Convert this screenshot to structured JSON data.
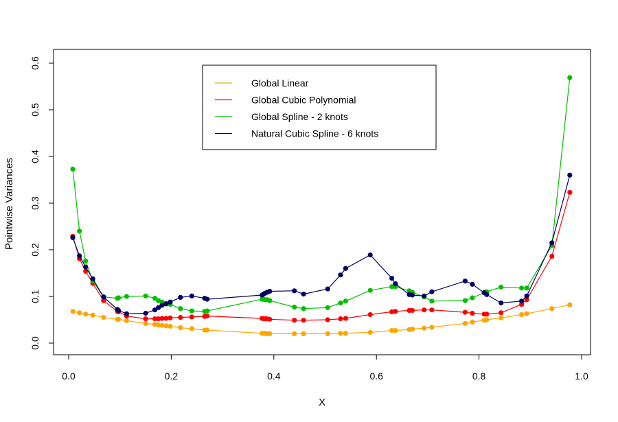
{
  "chart_data": {
    "type": "line",
    "xlabel": "X",
    "ylabel": "Pointwise Variances",
    "xlim": [
      0.0,
      1.0
    ],
    "ylim": [
      0.0,
      0.6
    ],
    "x_ticks": [
      "0.0",
      "0.2",
      "0.4",
      "0.6",
      "0.8",
      "1.0"
    ],
    "y_ticks": [
      "0.0",
      "0.1",
      "0.2",
      "0.3",
      "0.4",
      "0.5",
      "0.6"
    ],
    "legend_position": "top-center",
    "grid": false,
    "series": [
      {
        "name": "Global Linear",
        "color": "#FFA500",
        "points": [
          [
            0.008,
            0.068
          ],
          [
            0.021,
            0.065
          ],
          [
            0.033,
            0.062
          ],
          [
            0.047,
            0.06
          ],
          [
            0.068,
            0.055
          ],
          [
            0.095,
            0.051
          ],
          [
            0.097,
            0.051
          ],
          [
            0.113,
            0.048
          ],
          [
            0.15,
            0.042
          ],
          [
            0.168,
            0.04
          ],
          [
            0.175,
            0.039
          ],
          [
            0.182,
            0.038
          ],
          [
            0.19,
            0.037
          ],
          [
            0.198,
            0.036
          ],
          [
            0.218,
            0.033
          ],
          [
            0.24,
            0.031
          ],
          [
            0.265,
            0.028
          ],
          [
            0.27,
            0.028
          ],
          [
            0.377,
            0.021
          ],
          [
            0.38,
            0.021
          ],
          [
            0.383,
            0.021
          ],
          [
            0.387,
            0.02
          ],
          [
            0.392,
            0.02
          ],
          [
            0.44,
            0.02
          ],
          [
            0.458,
            0.02
          ],
          [
            0.505,
            0.02
          ],
          [
            0.53,
            0.021
          ],
          [
            0.54,
            0.021
          ],
          [
            0.588,
            0.023
          ],
          [
            0.63,
            0.027
          ],
          [
            0.637,
            0.027
          ],
          [
            0.664,
            0.029
          ],
          [
            0.67,
            0.03
          ],
          [
            0.693,
            0.032
          ],
          [
            0.708,
            0.034
          ],
          [
            0.773,
            0.042
          ],
          [
            0.787,
            0.045
          ],
          [
            0.81,
            0.049
          ],
          [
            0.815,
            0.05
          ],
          [
            0.843,
            0.054
          ],
          [
            0.883,
            0.061
          ],
          [
            0.893,
            0.063
          ],
          [
            0.942,
            0.074
          ],
          [
            0.977,
            0.082
          ]
        ]
      },
      {
        "name": "Global Cubic Polynomial",
        "color": "#FF0000",
        "points": [
          [
            0.008,
            0.229
          ],
          [
            0.021,
            0.181
          ],
          [
            0.033,
            0.154
          ],
          [
            0.047,
            0.128
          ],
          [
            0.068,
            0.091
          ],
          [
            0.095,
            0.068
          ],
          [
            0.097,
            0.067
          ],
          [
            0.113,
            0.058
          ],
          [
            0.15,
            0.052
          ],
          [
            0.168,
            0.052
          ],
          [
            0.175,
            0.052
          ],
          [
            0.182,
            0.053
          ],
          [
            0.19,
            0.053
          ],
          [
            0.198,
            0.054
          ],
          [
            0.218,
            0.055
          ],
          [
            0.24,
            0.056
          ],
          [
            0.265,
            0.057
          ],
          [
            0.27,
            0.058
          ],
          [
            0.377,
            0.053
          ],
          [
            0.38,
            0.052
          ],
          [
            0.383,
            0.052
          ],
          [
            0.387,
            0.052
          ],
          [
            0.392,
            0.051
          ],
          [
            0.44,
            0.049
          ],
          [
            0.458,
            0.049
          ],
          [
            0.505,
            0.05
          ],
          [
            0.53,
            0.052
          ],
          [
            0.54,
            0.053
          ],
          [
            0.588,
            0.061
          ],
          [
            0.63,
            0.067
          ],
          [
            0.637,
            0.068
          ],
          [
            0.664,
            0.07
          ],
          [
            0.67,
            0.07
          ],
          [
            0.693,
            0.071
          ],
          [
            0.708,
            0.071
          ],
          [
            0.773,
            0.066
          ],
          [
            0.787,
            0.064
          ],
          [
            0.81,
            0.062
          ],
          [
            0.815,
            0.062
          ],
          [
            0.843,
            0.065
          ],
          [
            0.883,
            0.083
          ],
          [
            0.893,
            0.093
          ],
          [
            0.942,
            0.186
          ],
          [
            0.977,
            0.323
          ]
        ]
      },
      {
        "name": "Global Spline - 2 knots",
        "color": "#00C000",
        "points": [
          [
            0.008,
            0.373
          ],
          [
            0.021,
            0.24
          ],
          [
            0.033,
            0.176
          ],
          [
            0.047,
            0.133
          ],
          [
            0.068,
            0.099
          ],
          [
            0.095,
            0.096
          ],
          [
            0.097,
            0.097
          ],
          [
            0.113,
            0.1
          ],
          [
            0.15,
            0.101
          ],
          [
            0.168,
            0.096
          ],
          [
            0.175,
            0.091
          ],
          [
            0.182,
            0.088
          ],
          [
            0.19,
            0.085
          ],
          [
            0.198,
            0.083
          ],
          [
            0.218,
            0.074
          ],
          [
            0.24,
            0.069
          ],
          [
            0.265,
            0.068
          ],
          [
            0.27,
            0.069
          ],
          [
            0.377,
            0.094
          ],
          [
            0.38,
            0.094
          ],
          [
            0.383,
            0.093
          ],
          [
            0.387,
            0.093
          ],
          [
            0.392,
            0.091
          ],
          [
            0.44,
            0.077
          ],
          [
            0.458,
            0.074
          ],
          [
            0.505,
            0.076
          ],
          [
            0.53,
            0.086
          ],
          [
            0.54,
            0.09
          ],
          [
            0.588,
            0.113
          ],
          [
            0.63,
            0.121
          ],
          [
            0.637,
            0.121
          ],
          [
            0.664,
            0.112
          ],
          [
            0.67,
            0.109
          ],
          [
            0.693,
            0.099
          ],
          [
            0.708,
            0.09
          ],
          [
            0.773,
            0.091
          ],
          [
            0.787,
            0.097
          ],
          [
            0.81,
            0.108
          ],
          [
            0.815,
            0.11
          ],
          [
            0.843,
            0.12
          ],
          [
            0.883,
            0.118
          ],
          [
            0.893,
            0.118
          ],
          [
            0.942,
            0.209
          ],
          [
            0.977,
            0.569
          ]
        ]
      },
      {
        "name": "Natural Cubic Spline - 6 knots",
        "color": "#000066",
        "points": [
          [
            0.008,
            0.226
          ],
          [
            0.021,
            0.187
          ],
          [
            0.033,
            0.163
          ],
          [
            0.047,
            0.138
          ],
          [
            0.068,
            0.099
          ],
          [
            0.095,
            0.072
          ],
          [
            0.097,
            0.07
          ],
          [
            0.113,
            0.063
          ],
          [
            0.15,
            0.064
          ],
          [
            0.168,
            0.071
          ],
          [
            0.175,
            0.076
          ],
          [
            0.182,
            0.081
          ],
          [
            0.19,
            0.084
          ],
          [
            0.198,
            0.088
          ],
          [
            0.218,
            0.098
          ],
          [
            0.24,
            0.101
          ],
          [
            0.265,
            0.096
          ],
          [
            0.27,
            0.094
          ],
          [
            0.377,
            0.103
          ],
          [
            0.38,
            0.105
          ],
          [
            0.383,
            0.107
          ],
          [
            0.387,
            0.109
          ],
          [
            0.392,
            0.111
          ],
          [
            0.44,
            0.112
          ],
          [
            0.458,
            0.105
          ],
          [
            0.505,
            0.116
          ],
          [
            0.53,
            0.146
          ],
          [
            0.54,
            0.16
          ],
          [
            0.588,
            0.189
          ],
          [
            0.63,
            0.139
          ],
          [
            0.637,
            0.127
          ],
          [
            0.664,
            0.104
          ],
          [
            0.67,
            0.103
          ],
          [
            0.693,
            0.101
          ],
          [
            0.708,
            0.11
          ],
          [
            0.773,
            0.133
          ],
          [
            0.787,
            0.126
          ],
          [
            0.81,
            0.108
          ],
          [
            0.815,
            0.104
          ],
          [
            0.843,
            0.086
          ],
          [
            0.883,
            0.09
          ],
          [
            0.893,
            0.101
          ],
          [
            0.942,
            0.215
          ],
          [
            0.977,
            0.36
          ]
        ]
      }
    ]
  }
}
